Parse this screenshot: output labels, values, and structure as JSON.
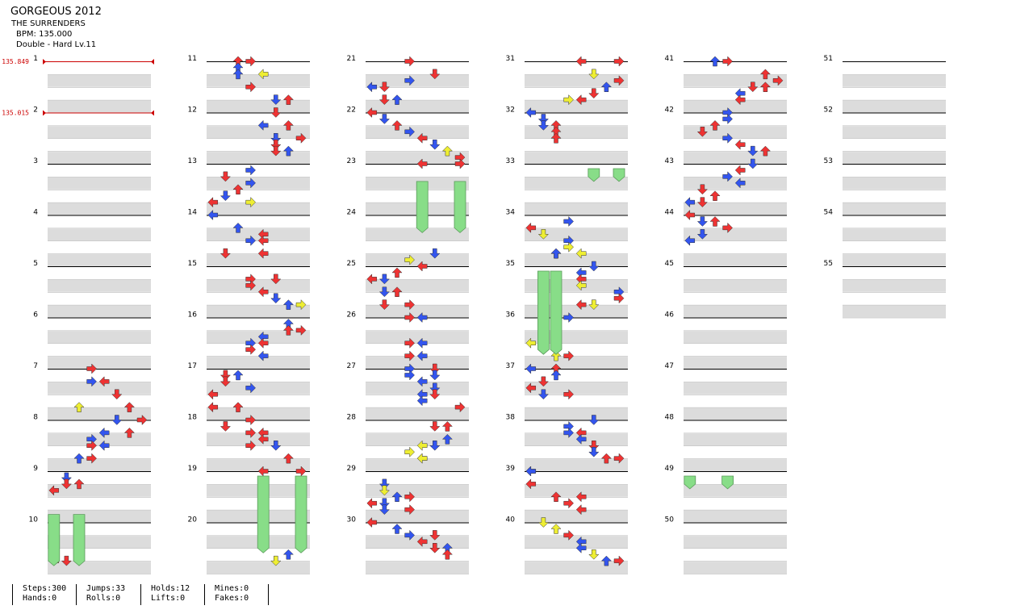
{
  "song": {
    "title": "GORGEOUS 2012",
    "artist": "THE SURRENDERS",
    "bpm": "BPM: 135.000",
    "chart": "Double - Hard Lv.11"
  },
  "bpm_changes": [
    {
      "measure": 1,
      "label": "135.849"
    },
    {
      "measure": 2,
      "label": "135.015"
    }
  ],
  "measure_count": 55,
  "stats": [
    {
      "label1": "Steps:300",
      "label2": "Hands:0"
    },
    {
      "label1": "Jumps:33",
      "label2": "Rolls:0"
    },
    {
      "label1": "Holds:12",
      "label2": "Lifts:0"
    },
    {
      "label1": "Mines:0",
      "label2": "Fakes:0"
    }
  ],
  "colors": {
    "quarter": "#ee3333",
    "eighth": "#3355ee",
    "sixteenth": "#eeee33",
    "hold": "#88dd88",
    "bpm": "#cc0000"
  },
  "notes_legend": "lanes 0-7 = L,D,U,R (P1) L,D,U,R (P2); pos = beat offset within measure",
  "notes": [
    [
      7,
      0.0,
      3,
      "R"
    ],
    [
      7,
      1.0,
      3,
      "E"
    ],
    [
      7,
      1.0,
      4,
      "R"
    ],
    [
      7,
      2.0,
      5,
      "R"
    ],
    [
      7,
      3.0,
      6,
      "R"
    ],
    [
      7,
      3.0,
      2,
      "S"
    ],
    [
      8,
      0.0,
      5,
      "E"
    ],
    [
      8,
      0.0,
      7,
      "R"
    ],
    [
      8,
      1.0,
      6,
      "R"
    ],
    [
      8,
      1.0,
      4,
      "E"
    ],
    [
      8,
      1.5,
      3,
      "E"
    ],
    [
      8,
      2.0,
      3,
      "R"
    ],
    [
      8,
      2.0,
      4,
      "E"
    ],
    [
      8,
      3.0,
      3,
      "R"
    ],
    [
      8,
      3.0,
      2,
      "E"
    ],
    [
      9,
      0.5,
      1,
      "E"
    ],
    [
      9,
      1.0,
      1,
      "R"
    ],
    [
      9,
      1.0,
      2,
      "R"
    ],
    [
      9,
      1.5,
      0,
      "R"
    ],
    [
      10,
      3.0,
      0,
      "R"
    ],
    [
      10,
      3.0,
      1,
      "R"
    ],
    [
      11,
      0.0,
      2,
      "R"
    ],
    [
      11,
      0.0,
      3,
      "R"
    ],
    [
      11,
      0.5,
      2,
      "E"
    ],
    [
      11,
      1.0,
      2,
      "E"
    ],
    [
      11,
      1.0,
      4,
      "S"
    ],
    [
      11,
      2.0,
      3,
      "R"
    ],
    [
      11,
      3.0,
      5,
      "E"
    ],
    [
      11,
      3.0,
      6,
      "R"
    ],
    [
      12,
      0.0,
      5,
      "R"
    ],
    [
      12,
      1.0,
      4,
      "E"
    ],
    [
      12,
      1.0,
      6,
      "R"
    ],
    [
      12,
      2.0,
      5,
      "E"
    ],
    [
      12,
      2.0,
      7,
      "R"
    ],
    [
      12,
      2.5,
      5,
      "R"
    ],
    [
      12,
      3.0,
      5,
      "R"
    ],
    [
      12,
      3.0,
      6,
      "E"
    ],
    [
      13,
      0.5,
      3,
      "E"
    ],
    [
      13,
      1.0,
      1,
      "R"
    ],
    [
      13,
      1.5,
      3,
      "E"
    ],
    [
      13,
      2.0,
      2,
      "R"
    ],
    [
      13,
      2.5,
      1,
      "E"
    ],
    [
      13,
      3.0,
      0,
      "R"
    ],
    [
      13,
      3.0,
      3,
      "S"
    ],
    [
      14,
      0.0,
      0,
      "E"
    ],
    [
      14,
      1.0,
      2,
      "E"
    ],
    [
      14,
      1.5,
      4,
      "R"
    ],
    [
      14,
      2.0,
      3,
      "E"
    ],
    [
      14,
      2.0,
      4,
      "R"
    ],
    [
      14,
      3.0,
      4,
      "R"
    ],
    [
      14,
      3.0,
      1,
      "R"
    ],
    [
      15,
      1.0,
      3,
      "R"
    ],
    [
      15,
      1.0,
      5,
      "R"
    ],
    [
      15,
      1.5,
      3,
      "R"
    ],
    [
      15,
      2.0,
      4,
      "R"
    ],
    [
      15,
      2.5,
      5,
      "E"
    ],
    [
      15,
      3.0,
      6,
      "E"
    ],
    [
      15,
      3.0,
      7,
      "S"
    ],
    [
      16,
      0.5,
      6,
      "E"
    ],
    [
      16,
      1.0,
      6,
      "R"
    ],
    [
      16,
      1.0,
      7,
      "R"
    ],
    [
      16,
      1.5,
      4,
      "E"
    ],
    [
      16,
      2.0,
      3,
      "E"
    ],
    [
      16,
      2.0,
      4,
      "R"
    ],
    [
      16,
      2.5,
      3,
      "R"
    ],
    [
      16,
      3.0,
      4,
      "E"
    ],
    [
      17,
      0.5,
      1,
      "R"
    ],
    [
      17,
      0.5,
      2,
      "E"
    ],
    [
      17,
      1.0,
      1,
      "R"
    ],
    [
      17,
      1.5,
      3,
      "E"
    ],
    [
      17,
      2.0,
      0,
      "R"
    ],
    [
      17,
      3.0,
      0,
      "R"
    ],
    [
      17,
      3.0,
      2,
      "R"
    ],
    [
      18,
      0.0,
      3,
      "R"
    ],
    [
      18,
      0.5,
      1,
      "R"
    ],
    [
      18,
      1.0,
      3,
      "R"
    ],
    [
      18,
      1.0,
      4,
      "R"
    ],
    [
      18,
      1.5,
      4,
      "R"
    ],
    [
      18,
      2.0,
      3,
      "R"
    ],
    [
      18,
      2.0,
      5,
      "E"
    ],
    [
      18,
      3.0,
      6,
      "R"
    ],
    [
      19,
      0.0,
      4,
      "R"
    ],
    [
      19,
      0.0,
      7,
      "R"
    ],
    [
      20,
      2.5,
      6,
      "E"
    ],
    [
      20,
      3.0,
      5,
      "S"
    ],
    [
      21,
      0.0,
      3,
      "R"
    ],
    [
      21,
      1.0,
      5,
      "R"
    ],
    [
      21,
      1.5,
      3,
      "E"
    ],
    [
      21,
      2.0,
      1,
      "R"
    ],
    [
      21,
      2.0,
      0,
      "E"
    ],
    [
      21,
      3.0,
      1,
      "R"
    ],
    [
      21,
      3.0,
      2,
      "E"
    ],
    [
      22,
      0.0,
      0,
      "R"
    ],
    [
      22,
      0.5,
      1,
      "E"
    ],
    [
      22,
      1.0,
      2,
      "R"
    ],
    [
      22,
      1.5,
      3,
      "E"
    ],
    [
      22,
      2.0,
      4,
      "R"
    ],
    [
      22,
      2.5,
      5,
      "E"
    ],
    [
      22,
      3.0,
      6,
      "S"
    ],
    [
      22,
      3.5,
      7,
      "R"
    ],
    [
      23,
      0.0,
      4,
      "R"
    ],
    [
      23,
      0.0,
      7,
      "R"
    ],
    [
      24,
      3.0,
      5,
      "E"
    ],
    [
      24,
      3.5,
      3,
      "S"
    ],
    [
      25,
      0.0,
      4,
      "R"
    ],
    [
      25,
      0.5,
      2,
      "R"
    ],
    [
      25,
      1.0,
      1,
      "E"
    ],
    [
      25,
      1.0,
      0,
      "R"
    ],
    [
      25,
      2.0,
      1,
      "E"
    ],
    [
      25,
      2.0,
      2,
      "R"
    ],
    [
      25,
      3.0,
      3,
      "R"
    ],
    [
      25,
      3.0,
      1,
      "R"
    ],
    [
      26,
      0.0,
      4,
      "E"
    ],
    [
      26,
      0.0,
      3,
      "R"
    ],
    [
      26,
      2.0,
      4,
      "E"
    ],
    [
      26,
      2.0,
      3,
      "R"
    ],
    [
      26,
      3.0,
      4,
      "E"
    ],
    [
      26,
      3.0,
      3,
      "R"
    ],
    [
      27,
      0.0,
      3,
      "E"
    ],
    [
      27,
      0.0,
      5,
      "R"
    ],
    [
      27,
      0.5,
      3,
      "E"
    ],
    [
      27,
      0.5,
      5,
      "E"
    ],
    [
      27,
      1.0,
      4,
      "E"
    ],
    [
      27,
      1.5,
      5,
      "E"
    ],
    [
      27,
      2.0,
      4,
      "E"
    ],
    [
      27,
      2.0,
      5,
      "R"
    ],
    [
      27,
      2.5,
      4,
      "E"
    ],
    [
      27,
      3.0,
      7,
      "R"
    ],
    [
      28,
      0.5,
      5,
      "R"
    ],
    [
      28,
      0.5,
      6,
      "R"
    ],
    [
      28,
      1.5,
      6,
      "E"
    ],
    [
      28,
      2.0,
      4,
      "S"
    ],
    [
      28,
      2.0,
      5,
      "E"
    ],
    [
      28,
      2.5,
      3,
      "S"
    ],
    [
      28,
      3.0,
      4,
      "R"
    ],
    [
      28,
      3.0,
      4,
      "S"
    ],
    [
      29,
      1.0,
      1,
      "E"
    ],
    [
      29,
      1.5,
      1,
      "S"
    ],
    [
      29,
      2.0,
      2,
      "E"
    ],
    [
      29,
      2.0,
      3,
      "R"
    ],
    [
      29,
      2.5,
      0,
      "R"
    ],
    [
      29,
      2.5,
      1,
      "E"
    ],
    [
      29,
      3.0,
      3,
      "R"
    ],
    [
      29,
      3.0,
      1,
      "E"
    ],
    [
      30,
      0.0,
      0,
      "R"
    ],
    [
      30,
      0.5,
      2,
      "E"
    ],
    [
      30,
      1.0,
      3,
      "E"
    ],
    [
      30,
      1.0,
      5,
      "R"
    ],
    [
      30,
      1.5,
      4,
      "R"
    ],
    [
      30,
      2.0,
      6,
      "E"
    ],
    [
      30,
      2.0,
      5,
      "R"
    ],
    [
      30,
      2.5,
      6,
      "R"
    ],
    [
      31,
      0.0,
      4,
      "R"
    ],
    [
      31,
      0.0,
      7,
      "R"
    ],
    [
      31,
      1.0,
      5,
      "S"
    ],
    [
      31,
      1.5,
      7,
      "R"
    ],
    [
      31,
      2.0,
      6,
      "E"
    ],
    [
      31,
      2.5,
      5,
      "R"
    ],
    [
      31,
      3.0,
      3,
      "S"
    ],
    [
      31,
      3.0,
      4,
      "R"
    ],
    [
      32,
      0.0,
      0,
      "E"
    ],
    [
      32,
      0.5,
      1,
      "E"
    ],
    [
      32,
      1.0,
      1,
      "E"
    ],
    [
      32,
      1.0,
      2,
      "R"
    ],
    [
      32,
      1.5,
      2,
      "R"
    ],
    [
      32,
      2.0,
      2,
      "R"
    ],
    [
      34,
      0.5,
      3,
      "E"
    ],
    [
      34,
      1.0,
      0,
      "R"
    ],
    [
      34,
      1.5,
      1,
      "S"
    ],
    [
      34,
      2.0,
      3,
      "E"
    ],
    [
      34,
      2.5,
      3,
      "S"
    ],
    [
      34,
      3.0,
      2,
      "R"
    ],
    [
      34,
      3.0,
      4,
      "S"
    ],
    [
      34,
      3.0,
      2,
      "E"
    ],
    [
      35,
      0.0,
      5,
      "E"
    ],
    [
      35,
      0.5,
      4,
      "E"
    ],
    [
      35,
      1.0,
      4,
      "R"
    ],
    [
      35,
      1.5,
      4,
      "S"
    ],
    [
      35,
      2.0,
      7,
      "E"
    ],
    [
      35,
      2.5,
      7,
      "R"
    ],
    [
      35,
      3.0,
      4,
      "R"
    ],
    [
      35,
      3.0,
      5,
      "S"
    ],
    [
      36,
      0.0,
      3,
      "E"
    ],
    [
      36,
      0.5,
      1,
      "E"
    ],
    [
      36,
      1.0,
      2,
      "R"
    ],
    [
      36,
      1.5,
      2,
      "R"
    ],
    [
      36,
      2.0,
      0,
      "S"
    ],
    [
      36,
      2.5,
      1,
      "E"
    ],
    [
      36,
      3.0,
      2,
      "S"
    ],
    [
      36,
      3.0,
      3,
      "R"
    ],
    [
      37,
      0.0,
      2,
      "R"
    ],
    [
      37,
      0.0,
      0,
      "E"
    ],
    [
      37,
      0.5,
      2,
      "E"
    ],
    [
      37,
      1.0,
      1,
      "R"
    ],
    [
      37,
      1.5,
      0,
      "R"
    ],
    [
      37,
      2.0,
      1,
      "E"
    ],
    [
      37,
      2.0,
      3,
      "R"
    ],
    [
      38,
      0.0,
      5,
      "E"
    ],
    [
      38,
      0.5,
      3,
      "E"
    ],
    [
      38,
      1.0,
      3,
      "E"
    ],
    [
      38,
      1.0,
      4,
      "R"
    ],
    [
      38,
      1.5,
      4,
      "E"
    ],
    [
      38,
      2.0,
      5,
      "R"
    ],
    [
      38,
      2.5,
      5,
      "E"
    ],
    [
      38,
      3.0,
      6,
      "R"
    ],
    [
      38,
      3.0,
      7,
      "R"
    ],
    [
      39,
      0.0,
      0,
      "R"
    ],
    [
      39,
      0.0,
      0,
      "E"
    ],
    [
      39,
      1.0,
      0,
      "R"
    ],
    [
      39,
      2.0,
      2,
      "R"
    ],
    [
      39,
      2.0,
      4,
      "R"
    ],
    [
      39,
      2.5,
      3,
      "R"
    ],
    [
      39,
      3.0,
      4,
      "R"
    ],
    [
      40,
      0.0,
      1,
      "S"
    ],
    [
      40,
      0.5,
      2,
      "S"
    ],
    [
      40,
      1.0,
      3,
      "R"
    ],
    [
      40,
      1.5,
      4,
      "E"
    ],
    [
      40,
      2.0,
      4,
      "E"
    ],
    [
      40,
      2.5,
      5,
      "S"
    ],
    [
      40,
      3.0,
      6,
      "E"
    ],
    [
      40,
      3.0,
      7,
      "R"
    ],
    [
      41,
      0.0,
      3,
      "R"
    ],
    [
      41,
      0.0,
      2,
      "E"
    ],
    [
      41,
      1.0,
      6,
      "R"
    ],
    [
      41,
      1.5,
      7,
      "R"
    ],
    [
      41,
      2.0,
      6,
      "R"
    ],
    [
      41,
      2.0,
      5,
      "R"
    ],
    [
      41,
      2.5,
      4,
      "E"
    ],
    [
      41,
      3.0,
      4,
      "R"
    ],
    [
      42,
      0.0,
      3,
      "E"
    ],
    [
      42,
      0.5,
      3,
      "E"
    ],
    [
      42,
      1.0,
      2,
      "R"
    ],
    [
      42,
      1.5,
      1,
      "R"
    ],
    [
      42,
      2.0,
      3,
      "E"
    ],
    [
      42,
      2.5,
      4,
      "R"
    ],
    [
      42,
      3.0,
      5,
      "E"
    ],
    [
      42,
      3.0,
      6,
      "R"
    ],
    [
      43,
      0.0,
      5,
      "E"
    ],
    [
      43,
      0.5,
      4,
      "R"
    ],
    [
      43,
      1.0,
      3,
      "E"
    ],
    [
      43,
      1.5,
      4,
      "E"
    ],
    [
      43,
      2.0,
      1,
      "R"
    ],
    [
      43,
      2.5,
      2,
      "R"
    ],
    [
      43,
      3.0,
      1,
      "R"
    ],
    [
      43,
      3.0,
      0,
      "E"
    ],
    [
      44,
      0.0,
      0,
      "R"
    ],
    [
      44,
      0.5,
      1,
      "E"
    ],
    [
      44,
      0.5,
      2,
      "R"
    ],
    [
      44,
      1.0,
      3,
      "R"
    ],
    [
      44,
      1.5,
      1,
      "E"
    ],
    [
      44,
      2.0,
      0,
      "E"
    ]
  ]
}
